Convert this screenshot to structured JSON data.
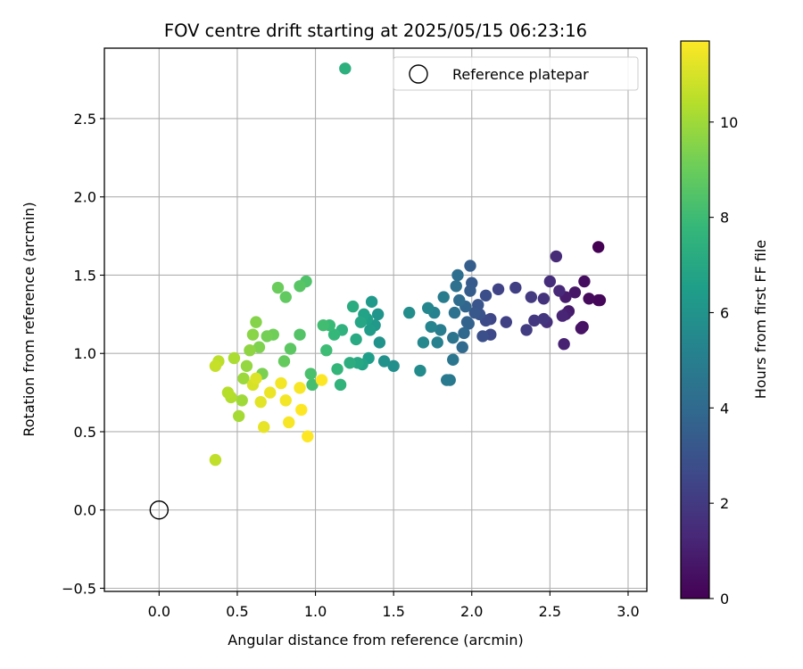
{
  "chart_data": {
    "type": "scatter",
    "title": "FOV centre drift starting at 2025/05/15 06:23:16",
    "xlabel": "Angular distance from reference (arcmin)",
    "ylabel": "Rotation from reference (arcmin)",
    "xlim": [
      -0.35,
      3.12
    ],
    "ylim": [
      -0.52,
      2.95
    ],
    "xticks": [
      0.0,
      0.5,
      1.0,
      1.5,
      2.0,
      2.5,
      3.0
    ],
    "xtick_labels": [
      "0.0",
      "0.5",
      "1.0",
      "1.5",
      "2.0",
      "2.5",
      "3.0"
    ],
    "yticks": [
      -0.5,
      0.0,
      0.5,
      1.0,
      1.5,
      2.0,
      2.5
    ],
    "ytick_labels": [
      "−0.5",
      "0.0",
      "0.5",
      "1.0",
      "1.5",
      "2.0",
      "2.5"
    ],
    "grid": true,
    "legend_placement": "top-right",
    "legend": [
      {
        "label": "Reference platepar",
        "marker": "open-circle",
        "x": 0.0,
        "y": 0.0
      }
    ],
    "colorbar": {
      "label": "Hours from first FF file",
      "colormap": "viridis",
      "range": [
        0,
        11.7
      ],
      "ticks": [
        0,
        2,
        4,
        6,
        8,
        10
      ],
      "tick_labels": [
        "0",
        "2",
        "4",
        "6",
        "8",
        "10"
      ]
    },
    "colormap_stops": [
      "#440154",
      "#482878",
      "#3e4989",
      "#31688e",
      "#26828e",
      "#1f9e89",
      "#35b779",
      "#6ece58",
      "#b5de2b",
      "#fde725"
    ],
    "points": [
      [
        2.81,
        1.68,
        0.0
      ],
      [
        2.82,
        1.34,
        0.1
      ],
      [
        2.81,
        1.34,
        0.2
      ],
      [
        2.75,
        1.35,
        0.3
      ],
      [
        2.72,
        1.46,
        0.4
      ],
      [
        2.71,
        1.17,
        0.5
      ],
      [
        2.7,
        1.16,
        0.6
      ],
      [
        2.66,
        1.39,
        0.7
      ],
      [
        2.62,
        1.27,
        0.8
      ],
      [
        2.6,
        1.36,
        0.9
      ],
      [
        2.6,
        1.25,
        1.0
      ],
      [
        2.59,
        1.06,
        1.1
      ],
      [
        2.58,
        1.24,
        1.2
      ],
      [
        2.56,
        1.4,
        1.3
      ],
      [
        2.54,
        1.62,
        1.4
      ],
      [
        2.5,
        1.46,
        1.5
      ],
      [
        2.48,
        1.2,
        1.6
      ],
      [
        2.46,
        1.35,
        1.7
      ],
      [
        2.46,
        1.22,
        1.8
      ],
      [
        2.4,
        1.21,
        1.9
      ],
      [
        2.38,
        1.36,
        2.0
      ],
      [
        2.35,
        1.15,
        2.1
      ],
      [
        2.28,
        1.42,
        2.2
      ],
      [
        2.22,
        1.2,
        2.3
      ],
      [
        2.17,
        1.41,
        2.4
      ],
      [
        2.12,
        1.22,
        2.5
      ],
      [
        2.12,
        1.12,
        2.6
      ],
      [
        2.09,
        1.21,
        2.7
      ],
      [
        2.09,
        1.37,
        2.8
      ],
      [
        2.07,
        1.11,
        2.9
      ],
      [
        2.05,
        1.25,
        3.0
      ],
      [
        2.04,
        1.31,
        3.1
      ],
      [
        2.02,
        1.26,
        3.2
      ],
      [
        2.0,
        1.45,
        3.3
      ],
      [
        1.99,
        1.4,
        3.4
      ],
      [
        1.99,
        1.56,
        3.5
      ],
      [
        1.98,
        1.19,
        3.6
      ],
      [
        1.97,
        1.2,
        3.7
      ],
      [
        1.96,
        1.3,
        3.8
      ],
      [
        1.95,
        1.13,
        3.9
      ],
      [
        1.94,
        1.04,
        4.0
      ],
      [
        1.92,
        1.34,
        4.1
      ],
      [
        1.91,
        1.5,
        4.2
      ],
      [
        1.9,
        1.43,
        4.3
      ],
      [
        1.89,
        1.26,
        4.4
      ],
      [
        1.88,
        1.1,
        4.5
      ],
      [
        1.88,
        0.96,
        4.6
      ],
      [
        1.86,
        0.83,
        4.7
      ],
      [
        1.84,
        0.83,
        4.8
      ],
      [
        1.82,
        1.36,
        4.9
      ],
      [
        1.8,
        1.15,
        5.0
      ],
      [
        1.78,
        1.07,
        5.1
      ],
      [
        1.76,
        1.26,
        5.2
      ],
      [
        1.74,
        1.17,
        5.3
      ],
      [
        1.72,
        1.29,
        5.4
      ],
      [
        1.69,
        1.07,
        5.5
      ],
      [
        1.67,
        0.89,
        5.6
      ],
      [
        1.6,
        1.26,
        5.7
      ],
      [
        1.5,
        0.92,
        5.8
      ],
      [
        1.44,
        0.95,
        5.9
      ],
      [
        1.41,
        1.07,
        6.0
      ],
      [
        1.4,
        1.25,
        6.1
      ],
      [
        1.38,
        1.18,
        6.2
      ],
      [
        1.36,
        1.33,
        6.3
      ],
      [
        1.35,
        1.15,
        6.4
      ],
      [
        1.34,
        0.97,
        6.5
      ],
      [
        1.33,
        1.22,
        6.6
      ],
      [
        1.31,
        1.25,
        6.7
      ],
      [
        1.3,
        0.93,
        6.8
      ],
      [
        1.29,
        1.2,
        6.9
      ],
      [
        1.27,
        0.94,
        7.0
      ],
      [
        1.26,
        1.09,
        7.1
      ],
      [
        1.24,
        1.3,
        7.2
      ],
      [
        1.22,
        0.94,
        7.3
      ],
      [
        1.19,
        2.82,
        7.4
      ],
      [
        1.17,
        1.15,
        7.5
      ],
      [
        1.16,
        0.8,
        7.6
      ],
      [
        1.14,
        0.9,
        7.7
      ],
      [
        1.12,
        1.12,
        7.8
      ],
      [
        1.09,
        1.18,
        7.9
      ],
      [
        1.07,
        1.02,
        8.0
      ],
      [
        1.05,
        1.18,
        8.1
      ],
      [
        0.98,
        0.8,
        8.2
      ],
      [
        0.97,
        0.87,
        8.3
      ],
      [
        0.94,
        1.46,
        8.4
      ],
      [
        0.9,
        1.12,
        8.5
      ],
      [
        0.9,
        1.43,
        8.6
      ],
      [
        0.84,
        1.03,
        8.7
      ],
      [
        0.81,
        1.36,
        8.8
      ],
      [
        0.8,
        0.95,
        8.9
      ],
      [
        0.76,
        1.42,
        9.0
      ],
      [
        0.73,
        1.12,
        9.1
      ],
      [
        0.69,
        1.11,
        9.2
      ],
      [
        0.66,
        0.87,
        9.3
      ],
      [
        0.64,
        1.04,
        9.4
      ],
      [
        0.62,
        1.2,
        9.5
      ],
      [
        0.6,
        1.12,
        9.6
      ],
      [
        0.58,
        1.02,
        9.7
      ],
      [
        0.56,
        0.92,
        9.8
      ],
      [
        0.54,
        0.84,
        9.9
      ],
      [
        0.53,
        0.7,
        10.0
      ],
      [
        0.51,
        0.6,
        10.1
      ],
      [
        0.48,
        0.97,
        10.2
      ],
      [
        0.46,
        0.72,
        10.3
      ],
      [
        0.44,
        0.75,
        10.4
      ],
      [
        0.38,
        0.95,
        10.5
      ],
      [
        0.36,
        0.32,
        10.6
      ],
      [
        0.36,
        0.92,
        10.7
      ],
      [
        0.6,
        0.8,
        11.0
      ],
      [
        0.62,
        0.84,
        11.1
      ],
      [
        0.65,
        0.69,
        11.2
      ],
      [
        0.67,
        0.53,
        11.3
      ],
      [
        0.71,
        0.75,
        11.4
      ],
      [
        0.78,
        0.81,
        11.5
      ],
      [
        0.81,
        0.7,
        11.5
      ],
      [
        0.83,
        0.56,
        11.6
      ],
      [
        0.9,
        0.78,
        11.6
      ],
      [
        0.91,
        0.64,
        11.7
      ],
      [
        0.95,
        0.47,
        11.7
      ],
      [
        1.04,
        0.83,
        11.7
      ]
    ]
  }
}
